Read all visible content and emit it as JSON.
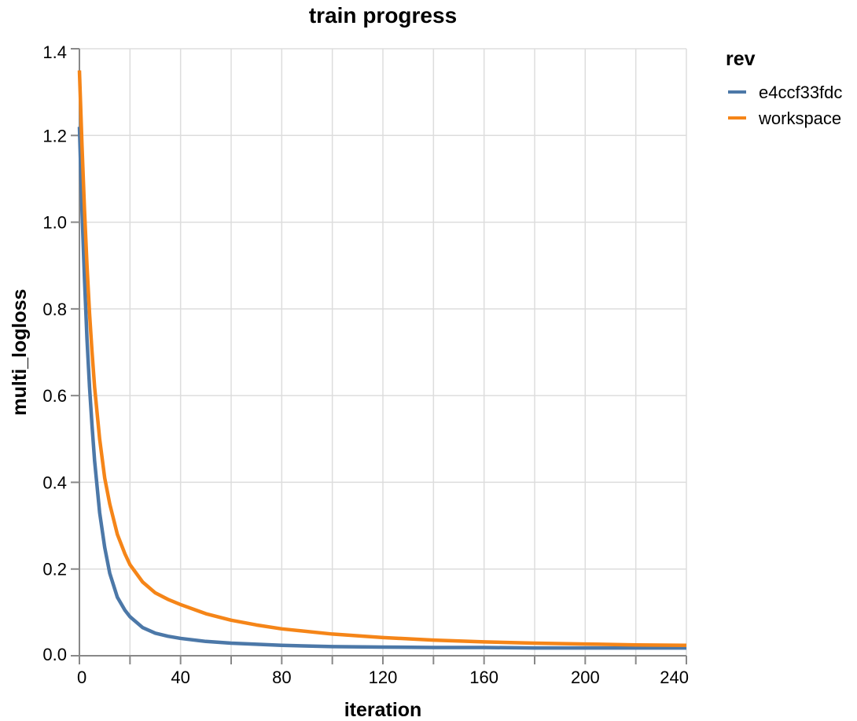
{
  "chart_data": {
    "type": "line",
    "title": "train progress",
    "xlabel": "iteration",
    "ylabel": "multi_logloss",
    "xlim": [
      0,
      240
    ],
    "ylim": [
      0,
      1.4
    ],
    "xticks": [
      0,
      40,
      80,
      120,
      160,
      200,
      240
    ],
    "yticks": [
      0.0,
      0.2,
      0.4,
      0.6,
      0.8,
      1.0,
      1.2,
      1.4
    ],
    "xtick_labels": [
      "0",
      "40",
      "80",
      "120",
      "160",
      "200",
      "240"
    ],
    "ytick_labels": [
      "0.0",
      "0.2",
      "0.4",
      "0.6",
      "0.8",
      "1.0",
      "1.2",
      "1.4"
    ],
    "grid": true,
    "legend": {
      "title": "rev",
      "placement": "top-right"
    },
    "series": [
      {
        "name": "e4ccf33fdc",
        "color": "#4c78a8",
        "x": [
          0,
          1,
          2,
          3,
          4,
          5,
          6,
          8,
          10,
          12,
          15,
          18,
          20,
          25,
          30,
          35,
          40,
          50,
          60,
          80,
          100,
          120,
          140,
          160,
          180,
          200,
          220,
          240
        ],
        "y": [
          1.22,
          1.03,
          0.87,
          0.73,
          0.62,
          0.53,
          0.45,
          0.33,
          0.25,
          0.19,
          0.135,
          0.105,
          0.09,
          0.065,
          0.052,
          0.045,
          0.04,
          0.033,
          0.029,
          0.024,
          0.021,
          0.02,
          0.019,
          0.019,
          0.018,
          0.018,
          0.018,
          0.018
        ]
      },
      {
        "name": "workspace",
        "color": "#f58518",
        "x": [
          0,
          1,
          2,
          3,
          4,
          5,
          6,
          8,
          10,
          12,
          15,
          18,
          20,
          25,
          30,
          35,
          40,
          50,
          60,
          70,
          80,
          100,
          120,
          140,
          160,
          180,
          200,
          220,
          240
        ],
        "y": [
          1.35,
          1.18,
          1.03,
          0.9,
          0.79,
          0.7,
          0.62,
          0.5,
          0.41,
          0.35,
          0.28,
          0.235,
          0.21,
          0.17,
          0.145,
          0.13,
          0.118,
          0.097,
          0.082,
          0.071,
          0.062,
          0.05,
          0.042,
          0.036,
          0.032,
          0.029,
          0.027,
          0.025,
          0.024
        ]
      }
    ]
  }
}
